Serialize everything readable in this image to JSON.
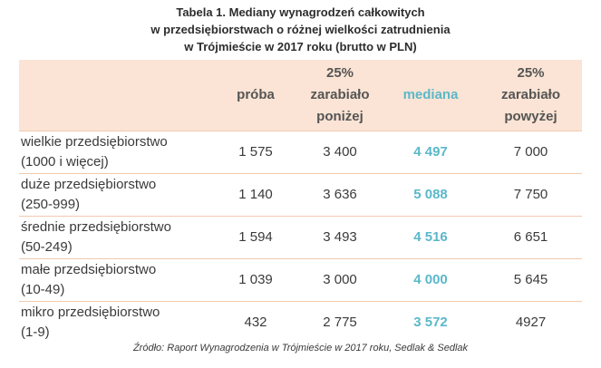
{
  "title": {
    "line1": "Tabela 1. Mediany wynagrodzeń całkowitych",
    "line2": "w przedsiębiorstwach o różnej wielkości zatrudnienia",
    "line3": "w Trójmieście w 2017 roku (brutto w PLN)"
  },
  "header": {
    "col1": "próba",
    "col2_line1": "25%",
    "col2_line2": "zarabiało",
    "col2_line3": "poniżej",
    "col3": "mediana",
    "col4_line1": "25%",
    "col4_line2": "zarabiało",
    "col4_line3": "powyżej"
  },
  "colors": {
    "header_bg": "#fbe4d5",
    "median_accent": "#5bb8c9",
    "row_divider": "#f2c9ad"
  },
  "rows": [
    {
      "name_line1": "wielkie przedsiębiorstwo",
      "name_line2": "(1000 i więcej)",
      "proba": "1 575",
      "below": "3 400",
      "median": "4 497",
      "above": "7 000"
    },
    {
      "name_line1": "duże przedsiębiorstwo",
      "name_line2": "(250-999)",
      "proba": "1 140",
      "below": "3 636",
      "median": "5 088",
      "above": "7 750"
    },
    {
      "name_line1": "średnie przedsiębiorstwo",
      "name_line2": "(50-249)",
      "proba": "1 594",
      "below": "3 493",
      "median": "4 516",
      "above": "6 651"
    },
    {
      "name_line1": "małe przedsiębiorstwo",
      "name_line2": "(10-49)",
      "proba": "1 039",
      "below": "3 000",
      "median": "4 000",
      "above": "5 645"
    },
    {
      "name_line1": "mikro przedsiębiorstwo",
      "name_line2": "(1-9)",
      "proba": "432",
      "below": "2 775",
      "median": "3 572",
      "above": "4927"
    }
  ],
  "source": "Źródło: Raport Wynagrodzenia w Trójmieście w 2017 roku, Sedlak & Sedlak"
}
